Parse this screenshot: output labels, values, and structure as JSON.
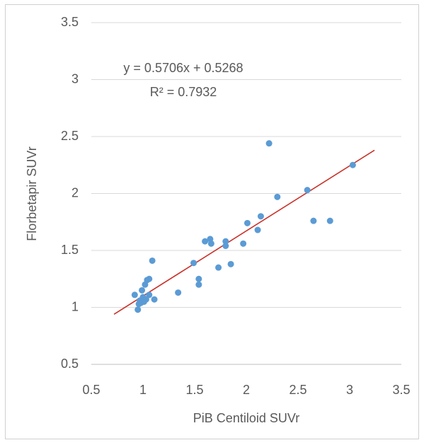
{
  "chart_data": {
    "type": "scatter",
    "xlabel": "PiB Centiloid SUVr",
    "ylabel": "Florbetapir SUVr",
    "annotations": [
      "y = 0.5706x + 0.5268",
      "R² = 0.7932"
    ],
    "color": "#5b9bd5",
    "x": [
      0.92,
      0.95,
      0.96,
      0.97,
      0.98,
      0.99,
      1.0,
      1.01,
      1.02,
      1.03,
      1.04,
      1.06,
      1.06,
      1.09,
      1.11,
      1.34,
      1.49,
      1.54,
      1.54,
      1.6,
      1.65,
      1.66,
      1.73,
      1.8,
      1.8,
      1.85,
      1.97,
      2.01,
      2.11,
      2.14,
      2.22,
      2.3,
      2.59,
      2.65,
      2.81,
      3.03
    ],
    "values": [
      1.11,
      0.98,
      1.03,
      1.06,
      1.04,
      1.15,
      1.09,
      1.05,
      1.2,
      1.07,
      1.24,
      1.25,
      1.11,
      1.41,
      1.07,
      1.13,
      1.39,
      1.25,
      1.2,
      1.58,
      1.6,
      1.56,
      1.35,
      1.58,
      1.54,
      1.38,
      1.56,
      1.74,
      1.68,
      1.8,
      2.44,
      1.97,
      2.03,
      1.76,
      1.76,
      2.25
    ],
    "trendline": {
      "color": "#c9322a",
      "x": [
        0.72,
        3.24
      ],
      "y": [
        0.94,
        2.38
      ]
    },
    "xlim": [
      0.5,
      3.5
    ],
    "xticks": [
      0.5,
      1,
      1.5,
      2,
      2.5,
      3,
      3.5
    ],
    "ylim": [
      0.5,
      3.5
    ],
    "yticks": [
      0.5,
      1,
      1.5,
      2,
      2.5,
      3,
      3.5
    ],
    "grid": true
  }
}
